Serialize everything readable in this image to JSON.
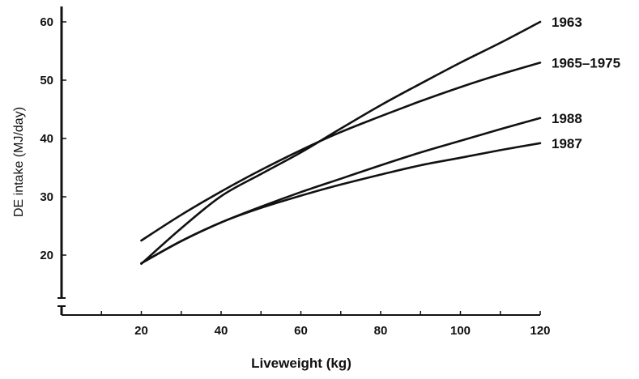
{
  "chart_data": {
    "type": "line",
    "title": "",
    "xlabel": "Liveweight (kg)",
    "ylabel": "DE intake (MJ/day)",
    "xlim": [
      0,
      120
    ],
    "ylim": [
      10,
      60
    ],
    "y_axis_break": true,
    "grid": false,
    "legend": "inline labels at right end of each line",
    "x_ticks": [
      20,
      40,
      60,
      80,
      100,
      120
    ],
    "y_ticks": [
      20,
      30,
      40,
      50,
      60
    ],
    "series": [
      {
        "name": "1963",
        "x": [
          20,
          30,
          40,
          50,
          60,
          70,
          80,
          90,
          100,
          110,
          120
        ],
        "y": [
          18.5,
          24.6,
          30.1,
          33.9,
          37.6,
          41.7,
          45.7,
          49.4,
          53.0,
          56.4,
          60.0
        ]
      },
      {
        "name": "1965–1975",
        "x": [
          20,
          30,
          40,
          50,
          60,
          70,
          80,
          90,
          100,
          110,
          120
        ],
        "y": [
          22.5,
          26.9,
          30.9,
          34.6,
          38.0,
          41.1,
          43.8,
          46.4,
          48.8,
          51.0,
          53.0
        ]
      },
      {
        "name": "1988",
        "x": [
          20,
          30,
          40,
          50,
          60,
          70,
          80,
          90,
          100,
          110,
          120
        ],
        "y": [
          18.6,
          22.4,
          25.6,
          28.3,
          30.8,
          33.1,
          35.4,
          37.6,
          39.6,
          41.6,
          43.5
        ]
      },
      {
        "name": "1987",
        "x": [
          20,
          30,
          40,
          50,
          60,
          70,
          80,
          90,
          100,
          110,
          120
        ],
        "y": [
          18.6,
          22.4,
          25.6,
          28.1,
          30.2,
          32.1,
          33.8,
          35.4,
          36.7,
          38.0,
          39.2
        ]
      }
    ]
  }
}
